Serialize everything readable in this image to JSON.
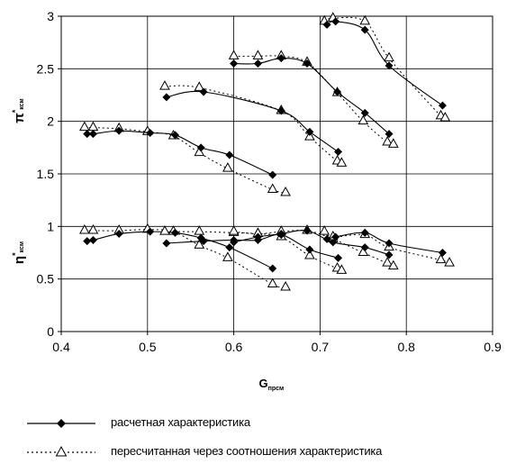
{
  "chart_data": {
    "type": "line",
    "xlabel": "G",
    "xlabel_sub": "прсм",
    "ylabel_top": "π",
    "ylabel_top_sup": "*",
    "ylabel_top_sub": "ксм",
    "ylabel_bottom": "η",
    "ylabel_bottom_sup": "*",
    "ylabel_bottom_sub": "ксм",
    "xlim": [
      0.4,
      0.9
    ],
    "ylim": [
      0,
      3
    ],
    "x_ticks": [
      "0.4",
      "0.5",
      "0.6",
      "0.7",
      "0.8",
      "0.9"
    ],
    "y_ticks": [
      "0",
      "0.5",
      "1",
      "1.5",
      "2",
      "2.5",
      "3"
    ],
    "grid": true,
    "legend_placement": "bottom",
    "legend": [
      {
        "label": "расчетная характеристика",
        "style": "solid-diamond"
      },
      {
        "label": "пересчитанная через соотношения характеристика",
        "style": "dotted-triangle"
      }
    ],
    "groups": [
      {
        "metric": "pressure-ratio",
        "calculated": {
          "x": [
            0.43,
            0.437,
            0.467,
            0.503,
            0.532,
            0.562,
            0.595,
            0.645
          ],
          "y": [
            1.88,
            1.88,
            1.91,
            1.89,
            1.87,
            1.75,
            1.68,
            1.49
          ]
        },
        "recalculated": {
          "x": [
            0.427,
            0.437,
            0.467,
            0.5,
            0.53,
            0.56,
            0.593,
            0.645,
            0.66
          ],
          "y": [
            1.94,
            1.94,
            1.93,
            1.9,
            1.86,
            1.7,
            1.55,
            1.35,
            1.32
          ]
        }
      },
      {
        "metric": "pressure-ratio",
        "calculated": {
          "x": [
            0.522,
            0.565,
            0.655,
            0.688,
            0.721
          ],
          "y": [
            2.23,
            2.28,
            2.1,
            1.9,
            1.71
          ]
        },
        "recalculated": {
          "x": [
            0.52,
            0.56,
            0.655,
            0.688,
            0.72,
            0.725
          ],
          "y": [
            2.33,
            2.32,
            2.1,
            1.85,
            1.62,
            1.6
          ]
        }
      },
      {
        "metric": "pressure-ratio",
        "calculated": {
          "x": [
            0.6,
            0.628,
            0.655,
            0.685,
            0.72,
            0.752,
            0.78
          ],
          "y": [
            2.55,
            2.55,
            2.6,
            2.55,
            2.28,
            2.08,
            1.88
          ]
        },
        "recalculated": {
          "x": [
            0.6,
            0.628,
            0.655,
            0.685,
            0.72,
            0.75,
            0.778,
            0.785
          ],
          "y": [
            2.62,
            2.62,
            2.62,
            2.56,
            2.27,
            2.0,
            1.8,
            1.78
          ]
        }
      },
      {
        "metric": "pressure-ratio",
        "calculated": {
          "x": [
            0.708,
            0.718,
            0.752,
            0.78,
            0.842
          ],
          "y": [
            2.92,
            2.95,
            2.87,
            2.53,
            2.15
          ]
        },
        "recalculated": {
          "x": [
            0.705,
            0.715,
            0.752,
            0.78,
            0.84,
            0.845
          ],
          "y": [
            2.95,
            2.98,
            2.95,
            2.6,
            2.05,
            2.03
          ]
        }
      },
      {
        "metric": "efficiency",
        "calculated": {
          "x": [
            0.43,
            0.437,
            0.467,
            0.503,
            0.532,
            0.562,
            0.595,
            0.645
          ],
          "y": [
            0.86,
            0.87,
            0.93,
            0.95,
            0.94,
            0.89,
            0.8,
            0.6
          ]
        },
        "recalculated": {
          "x": [
            0.427,
            0.437,
            0.467,
            0.5,
            0.53,
            0.56,
            0.593,
            0.645,
            0.66
          ],
          "y": [
            0.96,
            0.96,
            0.96,
            0.97,
            0.95,
            0.82,
            0.7,
            0.45,
            0.42
          ]
        }
      },
      {
        "metric": "efficiency",
        "calculated": {
          "x": [
            0.522,
            0.565,
            0.6,
            0.628,
            0.655,
            0.688,
            0.721
          ],
          "y": [
            0.84,
            0.86,
            0.87,
            0.87,
            0.92,
            0.78,
            0.7
          ]
        },
        "recalculated": {
          "x": [
            0.52,
            0.56,
            0.6,
            0.628,
            0.655,
            0.688,
            0.72,
            0.725
          ],
          "y": [
            0.95,
            0.95,
            0.94,
            0.93,
            0.9,
            0.72,
            0.6,
            0.58
          ]
        }
      },
      {
        "metric": "efficiency",
        "calculated": {
          "x": [
            0.6,
            0.628,
            0.655,
            0.685,
            0.715,
            0.752,
            0.78
          ],
          "y": [
            0.85,
            0.9,
            0.93,
            0.96,
            0.85,
            0.8,
            0.73
          ]
        },
        "recalculated": {
          "x": [
            0.6,
            0.628,
            0.655,
            0.685,
            0.715,
            0.75,
            0.778,
            0.785
          ],
          "y": [
            0.95,
            0.93,
            0.95,
            0.96,
            0.88,
            0.75,
            0.65,
            0.62
          ]
        }
      },
      {
        "metric": "efficiency",
        "calculated": {
          "x": [
            0.708,
            0.718,
            0.752,
            0.78,
            0.842
          ],
          "y": [
            0.88,
            0.9,
            0.94,
            0.84,
            0.75
          ]
        },
        "recalculated": {
          "x": [
            0.705,
            0.715,
            0.752,
            0.78,
            0.84,
            0.85
          ],
          "y": [
            0.95,
            0.9,
            0.92,
            0.8,
            0.68,
            0.65
          ]
        }
      }
    ]
  }
}
